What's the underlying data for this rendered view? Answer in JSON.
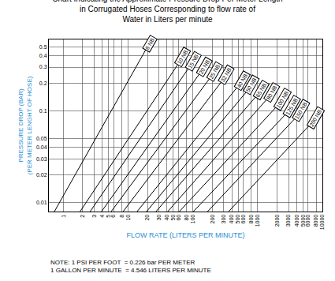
{
  "chart_data": {
    "type": "line",
    "title": "Chart Indicating the Approximate Pressure Drop Per Meter Length\nin Corrugated Hoses Corresponding to flow rate of\nWater in Liters per minute",
    "x_label": "FLOW RATE (LITERS PER MINUTE)",
    "y_label": "PRESSURE DROP (BAR)\n(PER METER LENGHT OF HOSE)",
    "annotations": [
      "NOTE: 1 PSI PER FOOT",
      "= 0.226 bar PER METER",
      "1 GALLON PER MINUTE",
      "= 4.546 LITERS PER MINUTE"
    ],
    "log": true,
    "grid": true,
    "color": "#000000",
    "xlim": [
      0.6,
      10000
    ],
    "ylim": [
      0.008,
      0.6
    ],
    "xticks": [
      1,
      2,
      3,
      4,
      5,
      6,
      8,
      10,
      20,
      30,
      40,
      50,
      60,
      80,
      100,
      200,
      300,
      400,
      500,
      600,
      800,
      1000,
      2000,
      3000,
      4000,
      5000,
      6000,
      8000,
      10000
    ],
    "yticks": [
      0.01,
      0.02,
      0.03,
      0.04,
      0.05,
      0.1,
      0.2,
      0.3,
      0.4,
      0.5
    ],
    "series": [
      {
        "name": "8 NB",
        "x": [
          0.73,
          19.3
        ],
        "values": [
          0.008,
          0.48
        ]
      },
      {
        "name": "10 NB",
        "x": [
          1.82,
          62
        ],
        "values": [
          0.008,
          0.34
        ]
      },
      {
        "name": "15 NB",
        "x": [
          2.6,
          91
        ],
        "values": [
          0.008,
          0.31
        ]
      },
      {
        "name": "20 NB",
        "x": [
          3.9,
          135
        ],
        "values": [
          0.008,
          0.27
        ]
      },
      {
        "name": "25 NB",
        "x": [
          5.5,
          194
        ],
        "values": [
          0.008,
          0.24
        ]
      },
      {
        "name": "32 NB",
        "x": [
          8.4,
          294
        ],
        "values": [
          0.008,
          0.22
        ]
      },
      {
        "name": "40 NB",
        "x": [
          13.8,
          512
        ],
        "values": [
          0.008,
          0.19
        ]
      },
      {
        "name": "50 NB",
        "x": [
          19.3,
          715
        ],
        "values": [
          0.008,
          0.17
        ]
      },
      {
        "name": "65 NB",
        "x": [
          27,
          1000
        ],
        "values": [
          0.008,
          0.15
        ]
      },
      {
        "name": "80 NB",
        "x": [
          41,
          1470
        ],
        "values": [
          0.008,
          0.14
        ]
      },
      {
        "name": "100 NB",
        "x": [
          62,
          2170
        ],
        "values": [
          0.008,
          0.12
        ]
      },
      {
        "name": "125 NB",
        "x": [
          102,
          3030
        ],
        "values": [
          0.008,
          0.1
        ]
      },
      {
        "name": "150 NB",
        "x": [
          169,
          4230
        ],
        "values": [
          0.008,
          0.09
        ]
      },
      {
        "name": "200 NB",
        "x": [
          357,
          6970
        ],
        "values": [
          0.008,
          0.075
        ]
      }
    ]
  }
}
